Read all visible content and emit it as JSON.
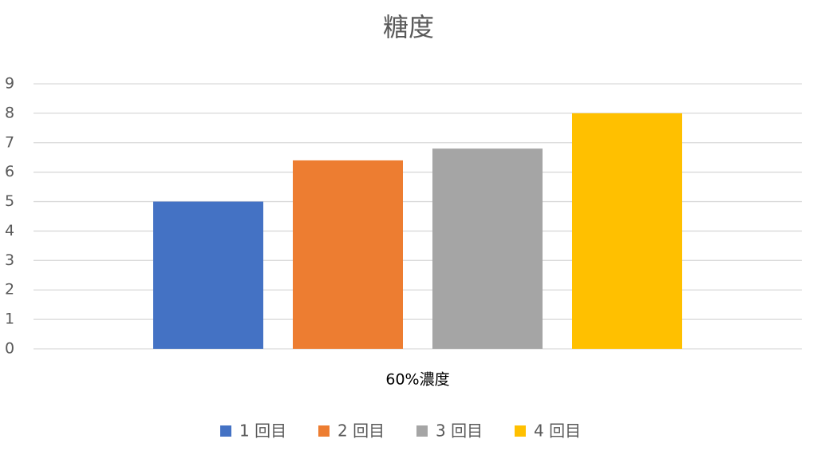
{
  "chart_data": {
    "type": "bar",
    "title": "糖度",
    "categories": [
      "60%濃度"
    ],
    "series": [
      {
        "name": "1 回目",
        "color": "#4472c4",
        "values": [
          5
        ]
      },
      {
        "name": "2 回目",
        "color": "#ed7d31",
        "values": [
          6.4
        ]
      },
      {
        "name": "3 回目",
        "color": "#a5a5a5",
        "values": [
          6.8
        ]
      },
      {
        "name": "4 回目",
        "color": "#ffc000",
        "values": [
          8
        ]
      }
    ],
    "ylim": [
      0,
      9
    ],
    "yticks": [
      0,
      1,
      2,
      3,
      4,
      5,
      6,
      7,
      8,
      9
    ],
    "grid": true,
    "legend": "bottom"
  }
}
